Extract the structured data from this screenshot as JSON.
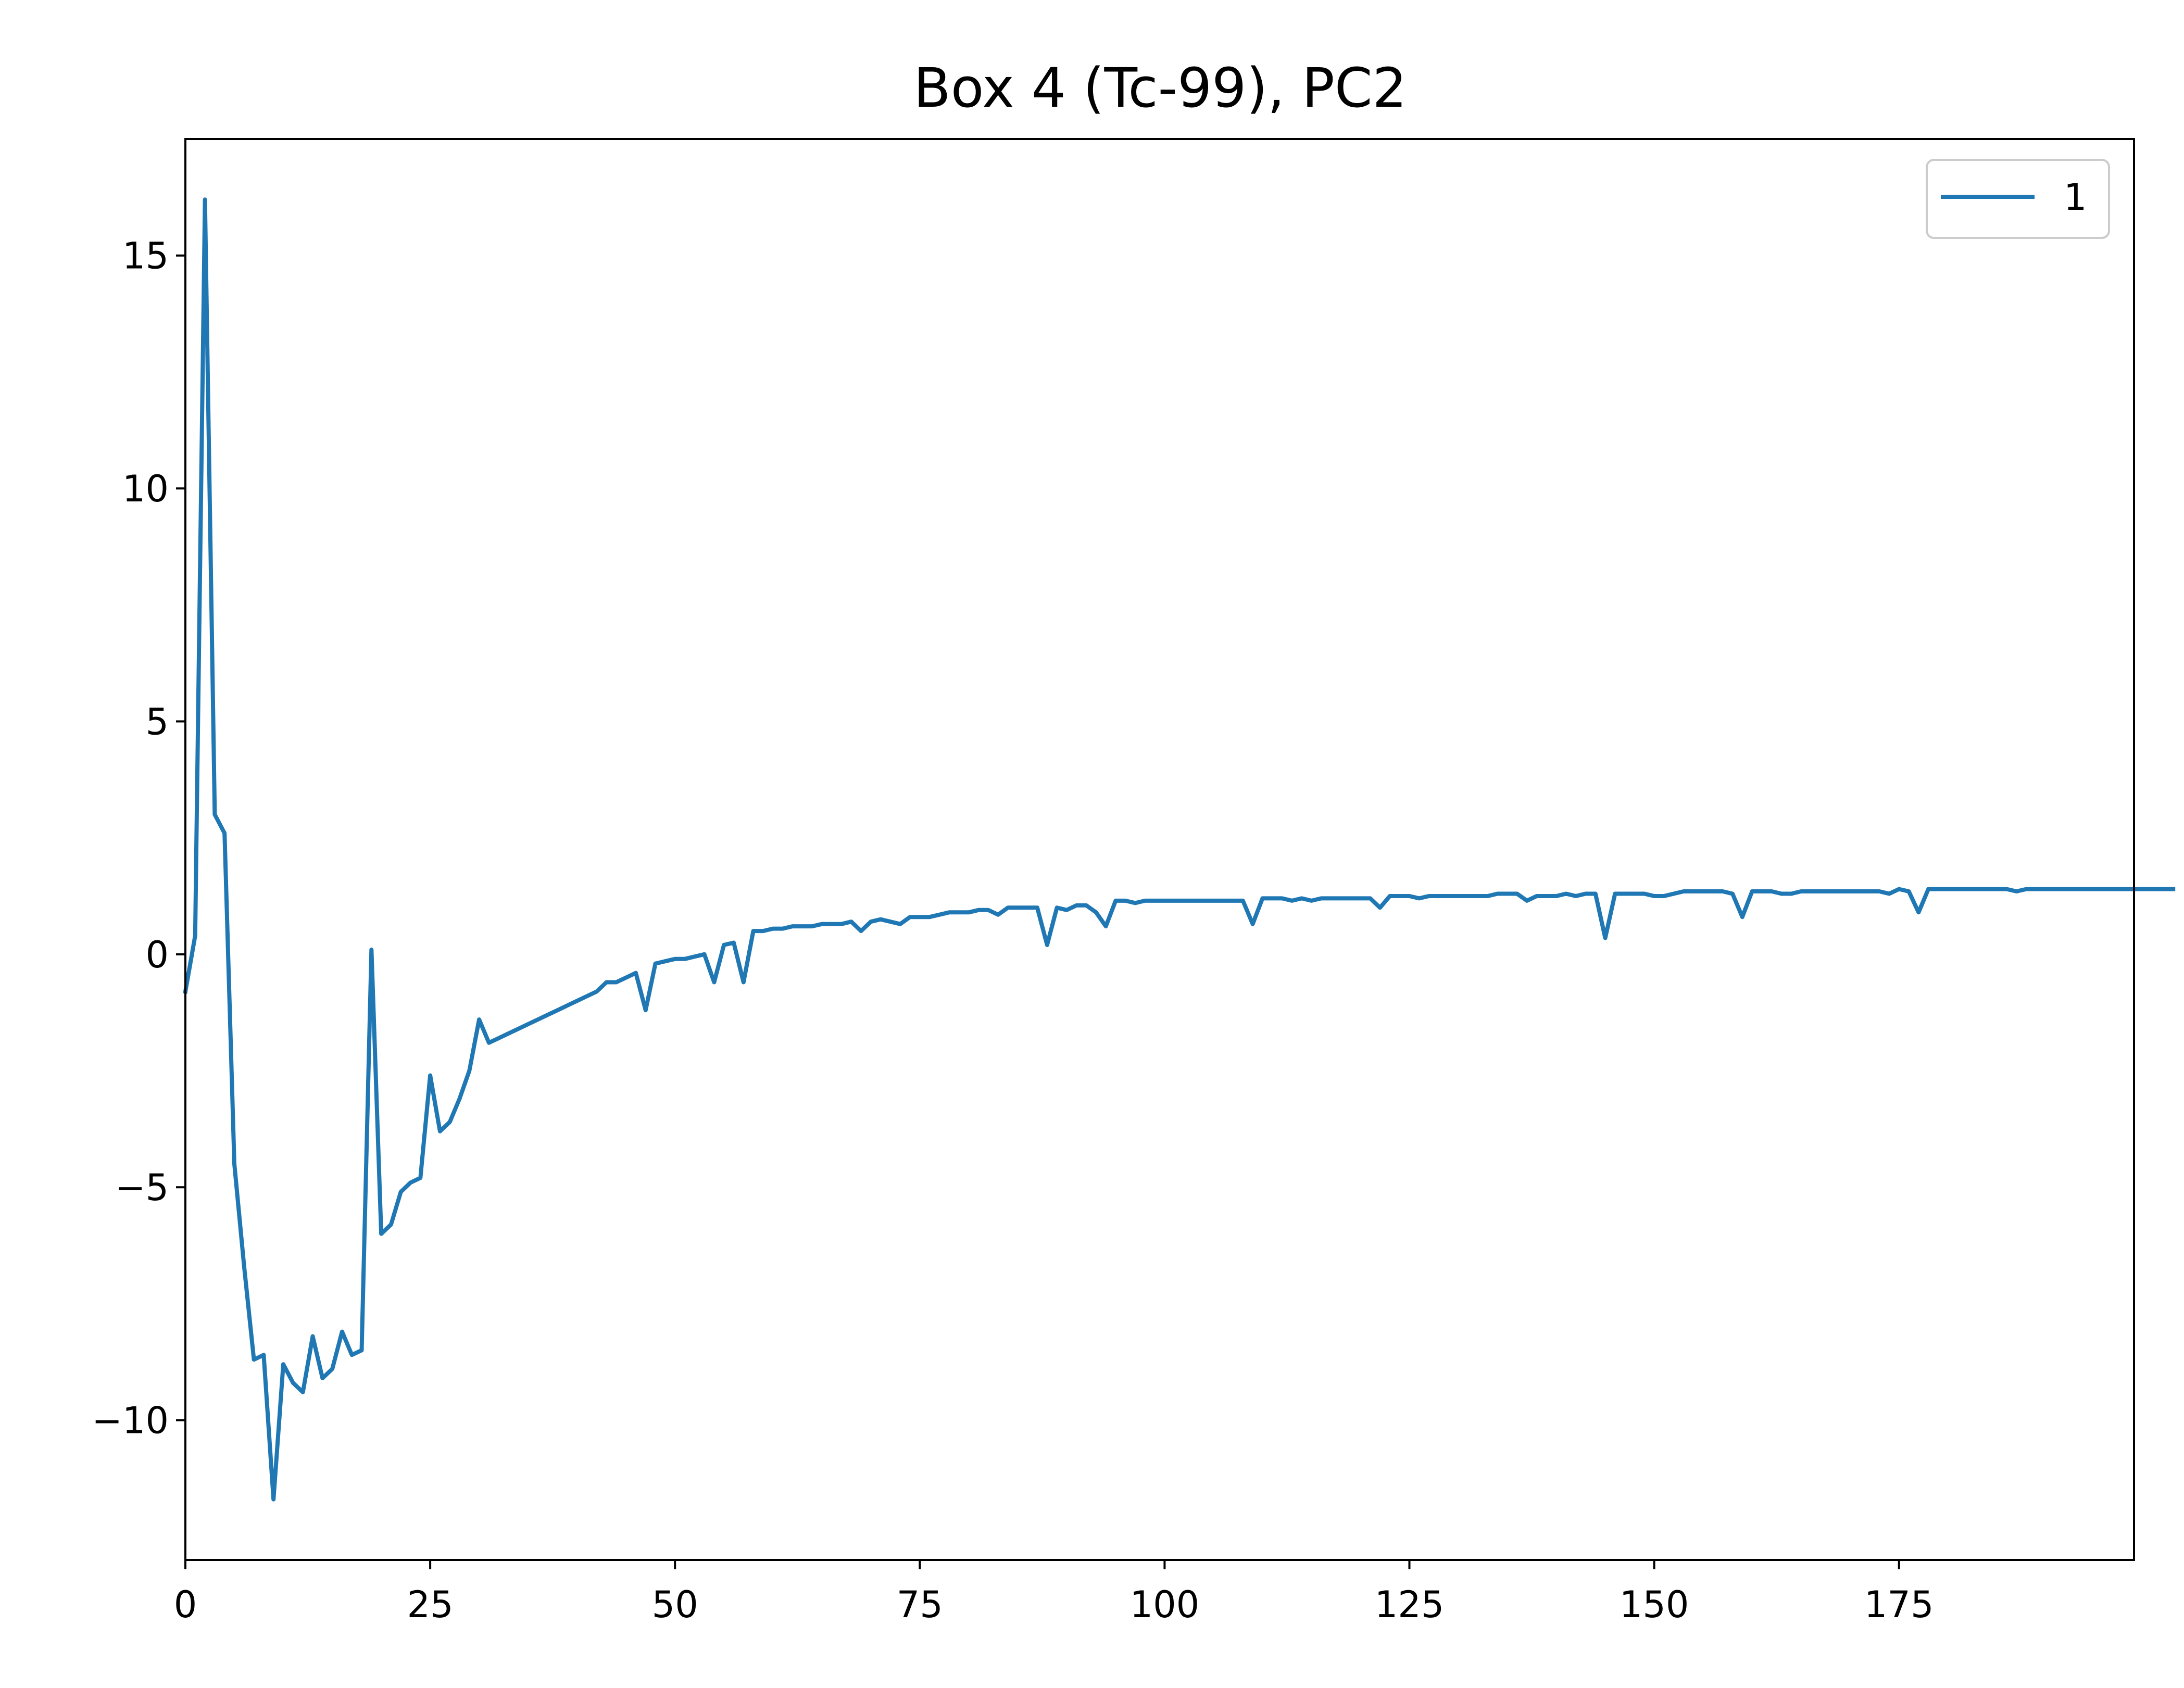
{
  "chart_data": {
    "type": "line",
    "title": "Box 4 (Tc-99), PC2",
    "xlabel": "",
    "ylabel": "",
    "xlim": [
      0,
      199
    ],
    "ylim": [
      -13,
      17.5
    ],
    "x_ticks": [
      0,
      25,
      50,
      75,
      100,
      125,
      150,
      175
    ],
    "x_tick_labels": [
      "0",
      "25",
      "50",
      "75",
      "100",
      "125",
      "150",
      "175"
    ],
    "y_ticks": [
      -10,
      -5,
      0,
      5,
      10,
      15
    ],
    "y_tick_labels": [
      "−10",
      "−5",
      "0",
      "5",
      "10",
      "15"
    ],
    "grid": false,
    "legend": {
      "placement": "top-right"
    },
    "colors": {
      "series": "#1f77b4",
      "axes": "#000000",
      "legend_border": "#cccccc"
    },
    "series": [
      {
        "name": "1",
        "x_start": 0,
        "x_step": 1,
        "values": [
          -0.8,
          0.4,
          16.2,
          3.0,
          2.6,
          -4.5,
          -6.7,
          -8.7,
          -8.6,
          -11.7,
          -8.8,
          -9.2,
          -9.4,
          -8.2,
          -9.1,
          -8.9,
          -8.1,
          -8.6,
          -8.5,
          0.1,
          -6.0,
          -5.8,
          -5.1,
          -4.9,
          -4.8,
          -2.6,
          -3.8,
          -3.6,
          -3.1,
          -2.5,
          -1.4,
          -1.9,
          -1.8,
          -1.7,
          -1.6,
          -1.5,
          -1.4,
          -1.3,
          -1.2,
          -1.1,
          -1.0,
          -0.9,
          -0.8,
          -0.6,
          -0.6,
          -0.5,
          -0.4,
          -1.2,
          -0.2,
          -0.15,
          -0.1,
          -0.1,
          -0.05,
          0.0,
          -0.6,
          0.2,
          0.25,
          -0.6,
          0.5,
          0.5,
          0.55,
          0.55,
          0.6,
          0.6,
          0.6,
          0.65,
          0.65,
          0.65,
          0.7,
          0.5,
          0.7,
          0.75,
          0.7,
          0.65,
          0.8,
          0.8,
          0.8,
          0.85,
          0.9,
          0.9,
          0.9,
          0.95,
          0.95,
          0.85,
          1.0,
          1.0,
          1.0,
          1.0,
          0.2,
          1.0,
          0.95,
          1.05,
          1.05,
          0.9,
          0.6,
          1.15,
          1.15,
          1.1,
          1.15,
          1.15,
          1.15,
          1.15,
          1.15,
          1.15,
          1.15,
          1.15,
          1.15,
          1.15,
          1.15,
          0.65,
          1.2,
          1.2,
          1.2,
          1.15,
          1.2,
          1.15,
          1.2,
          1.2,
          1.2,
          1.2,
          1.2,
          1.2,
          1.0,
          1.25,
          1.25,
          1.25,
          1.2,
          1.25,
          1.25,
          1.25,
          1.25,
          1.25,
          1.25,
          1.25,
          1.3,
          1.3,
          1.3,
          1.15,
          1.25,
          1.25,
          1.25,
          1.3,
          1.25,
          1.3,
          1.3,
          0.35,
          1.3,
          1.3,
          1.3,
          1.3,
          1.25,
          1.25,
          1.3,
          1.35,
          1.35,
          1.35,
          1.35,
          1.35,
          1.3,
          0.8,
          1.35,
          1.35,
          1.35,
          1.3,
          1.3,
          1.35,
          1.35,
          1.35,
          1.35,
          1.35,
          1.35,
          1.35,
          1.35,
          1.35,
          1.3,
          1.4,
          1.35,
          0.9,
          1.4,
          1.4,
          1.4,
          1.4,
          1.4,
          1.4,
          1.4,
          1.4,
          1.4,
          1.35,
          1.4,
          1.4,
          1.4,
          1.4,
          1.4,
          1.4,
          1.4,
          1.4,
          1.4,
          1.4,
          1.4,
          1.4,
          1.4,
          1.4,
          1.4,
          1.4
        ]
      }
    ]
  }
}
